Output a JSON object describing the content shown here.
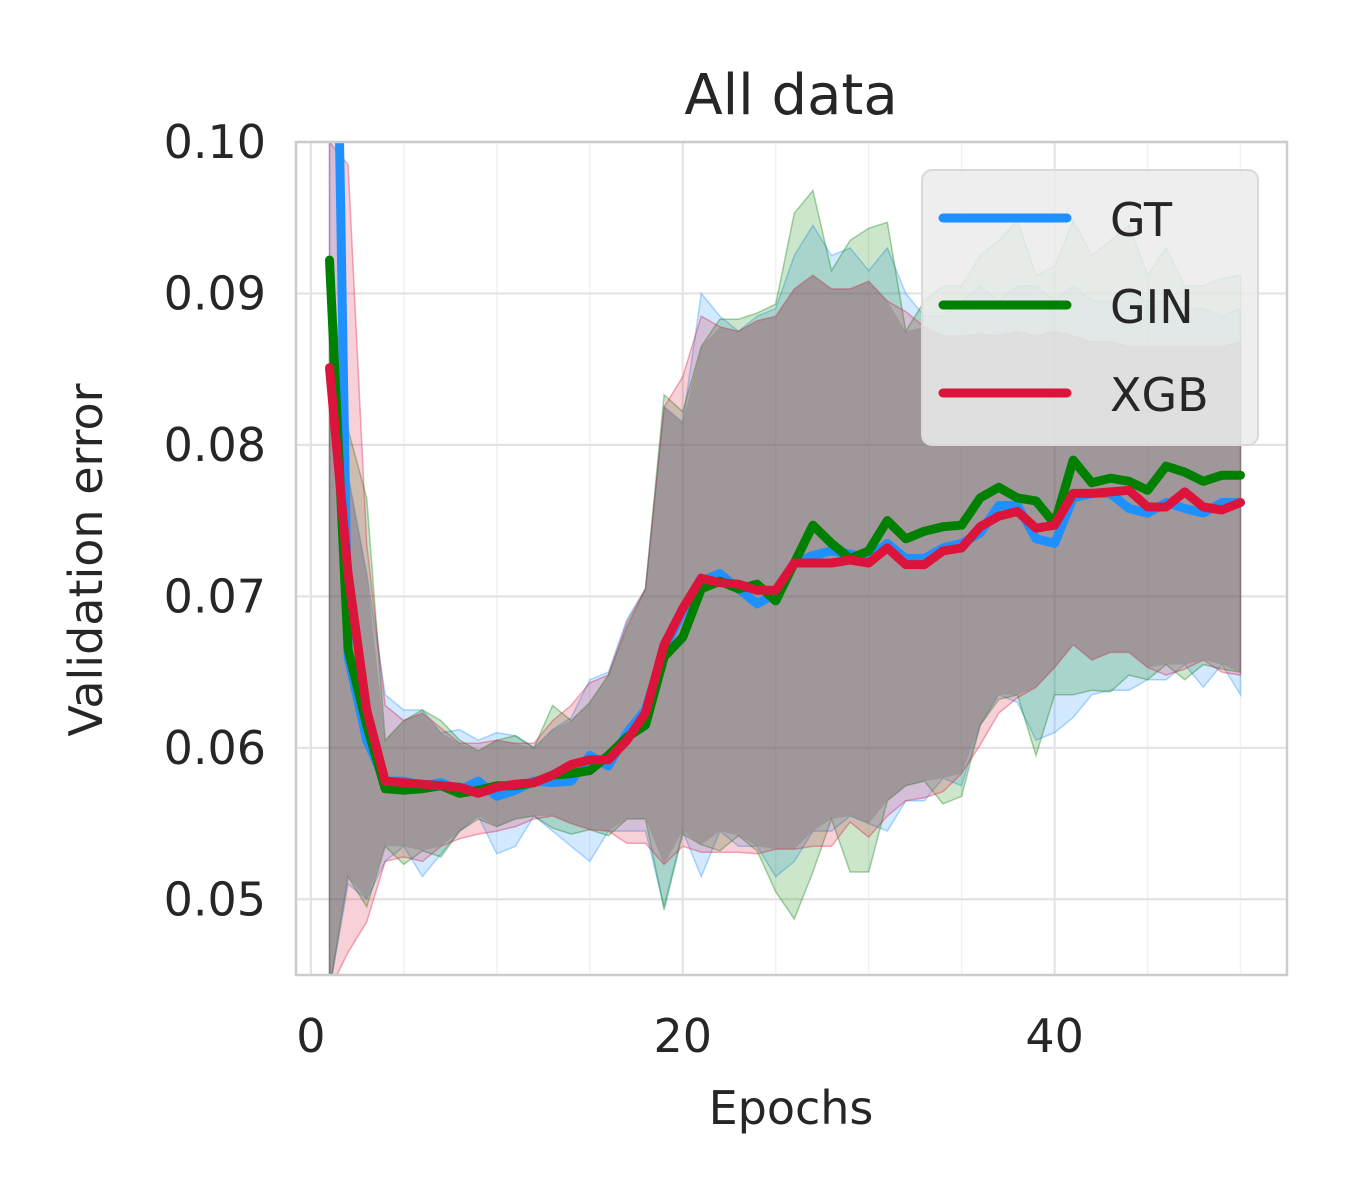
{
  "chart_data": {
    "type": "line",
    "title": "All data",
    "xlabel": "Epochs",
    "ylabel": "Validation error",
    "xlim": [
      -0.8,
      52.5
    ],
    "ylim": [
      0.045,
      0.1
    ],
    "xticks": [
      0,
      20,
      40
    ],
    "xtick_labels": [
      "0",
      "20",
      "40"
    ],
    "yticks": [
      0.05,
      0.06,
      0.07,
      0.08,
      0.09,
      0.1
    ],
    "ytick_labels": [
      "0.05",
      "0.06",
      "0.07",
      "0.08",
      "0.09",
      "0.10"
    ],
    "grid": true,
    "legend_position": "top-right",
    "x": [
      1,
      2,
      3,
      4,
      5,
      6,
      7,
      8,
      9,
      10,
      11,
      12,
      13,
      14,
      15,
      16,
      17,
      18,
      19,
      20,
      21,
      22,
      23,
      24,
      25,
      26,
      27,
      28,
      29,
      30,
      31,
      32,
      33,
      34,
      35,
      36,
      37,
      38,
      39,
      40,
      41,
      42,
      43,
      44,
      45,
      46,
      47,
      48,
      49,
      50
    ],
    "series": [
      {
        "name": "GT",
        "color": "#1e90ff",
        "values": [
          0.14,
          0.066,
          0.0605,
          0.0578,
          0.0578,
          0.0575,
          0.0577,
          0.0572,
          0.0578,
          0.0568,
          0.0572,
          0.0578,
          0.0577,
          0.0578,
          0.0595,
          0.0588,
          0.061,
          0.0625,
          0.0665,
          0.069,
          0.071,
          0.0715,
          0.0705,
          0.0695,
          0.0702,
          0.0722,
          0.0727,
          0.073,
          0.0728,
          0.0725,
          0.0735,
          0.0725,
          0.0725,
          0.0732,
          0.0735,
          0.0742,
          0.076,
          0.076,
          0.0738,
          0.0735,
          0.0765,
          0.0768,
          0.0768,
          0.0758,
          0.0755,
          0.0762,
          0.0758,
          0.0755,
          0.0762,
          0.0762
        ],
        "upper": [
          0.14,
          0.078,
          0.0715,
          0.0635,
          0.0625,
          0.0625,
          0.061,
          0.0612,
          0.0605,
          0.061,
          0.0608,
          0.06,
          0.0612,
          0.062,
          0.0645,
          0.065,
          0.0685,
          0.0705,
          0.0825,
          0.0815,
          0.09,
          0.0885,
          0.0875,
          0.0885,
          0.089,
          0.0925,
          0.0945,
          0.0925,
          0.093,
          0.0915,
          0.093,
          0.09,
          0.0885,
          0.0885,
          0.0895,
          0.0905,
          0.0895,
          0.0905,
          0.0905,
          0.0895,
          0.0905,
          0.0895,
          0.0895,
          0.09,
          0.0895,
          0.0895,
          0.089,
          0.089,
          0.0885,
          0.089
        ],
        "lower": [
          0.044,
          0.051,
          0.05,
          0.0525,
          0.0535,
          0.0515,
          0.053,
          0.0545,
          0.0555,
          0.053,
          0.0535,
          0.0555,
          0.0545,
          0.0535,
          0.0525,
          0.0545,
          0.0545,
          0.0545,
          0.0495,
          0.0545,
          0.0515,
          0.0545,
          0.0535,
          0.0535,
          0.0515,
          0.0525,
          0.0545,
          0.0545,
          0.0555,
          0.055,
          0.0545,
          0.0565,
          0.0565,
          0.058,
          0.0575,
          0.0615,
          0.0635,
          0.063,
          0.0605,
          0.061,
          0.062,
          0.0635,
          0.0638,
          0.0638,
          0.0645,
          0.0645,
          0.0655,
          0.064,
          0.0655,
          0.0635
        ]
      },
      {
        "name": "GIN",
        "color": "#008000",
        "values": [
          0.0922,
          0.0665,
          0.0615,
          0.0573,
          0.0572,
          0.0573,
          0.0575,
          0.057,
          0.0572,
          0.0575,
          0.0575,
          0.0577,
          0.0582,
          0.0583,
          0.0585,
          0.0595,
          0.0607,
          0.0615,
          0.066,
          0.0673,
          0.0705,
          0.071,
          0.0705,
          0.0708,
          0.0697,
          0.0722,
          0.0747,
          0.0735,
          0.0725,
          0.073,
          0.075,
          0.0738,
          0.0743,
          0.0746,
          0.0747,
          0.0765,
          0.0772,
          0.0765,
          0.0763,
          0.0748,
          0.079,
          0.0775,
          0.0778,
          0.0776,
          0.077,
          0.0786,
          0.0782,
          0.0776,
          0.078,
          0.078
        ],
        "upper": [
          0.0922,
          0.081,
          0.0765,
          0.0605,
          0.0618,
          0.0625,
          0.0618,
          0.0605,
          0.0598,
          0.0605,
          0.0608,
          0.06,
          0.0628,
          0.0618,
          0.063,
          0.0648,
          0.068,
          0.0705,
          0.0833,
          0.0822,
          0.0865,
          0.0883,
          0.0883,
          0.0887,
          0.0893,
          0.0953,
          0.0968,
          0.0915,
          0.0935,
          0.0943,
          0.0947,
          0.0875,
          0.0895,
          0.0905,
          0.0905,
          0.0925,
          0.0935,
          0.0948,
          0.0912,
          0.0918,
          0.0948,
          0.0925,
          0.0935,
          0.0945,
          0.0912,
          0.093,
          0.0905,
          0.0905,
          0.091,
          0.0912
        ],
        "lower": [
          0.044,
          0.0515,
          0.0495,
          0.0535,
          0.0523,
          0.0532,
          0.0528,
          0.0545,
          0.0553,
          0.0548,
          0.0553,
          0.0555,
          0.0547,
          0.0543,
          0.0546,
          0.0542,
          0.0553,
          0.0553,
          0.0493,
          0.0543,
          0.0536,
          0.0532,
          0.0542,
          0.0532,
          0.0505,
          0.0487,
          0.0518,
          0.0553,
          0.0518,
          0.0518,
          0.0565,
          0.0575,
          0.0578,
          0.0563,
          0.0568,
          0.0615,
          0.0632,
          0.0635,
          0.0595,
          0.0635,
          0.0635,
          0.0638,
          0.0637,
          0.0648,
          0.0645,
          0.0655,
          0.0645,
          0.0655,
          0.0652,
          0.065
        ]
      },
      {
        "name": "XGB",
        "color": "#dc143c",
        "values": [
          0.0851,
          0.0715,
          0.0625,
          0.0578,
          0.0577,
          0.0576,
          0.0575,
          0.0574,
          0.057,
          0.0574,
          0.0576,
          0.0577,
          0.0582,
          0.0589,
          0.0592,
          0.0592,
          0.0605,
          0.0623,
          0.0668,
          0.0692,
          0.0712,
          0.0709,
          0.0708,
          0.0704,
          0.0704,
          0.0722,
          0.0722,
          0.0722,
          0.0724,
          0.0722,
          0.0732,
          0.0721,
          0.0721,
          0.073,
          0.0732,
          0.0746,
          0.0753,
          0.0756,
          0.0745,
          0.0747,
          0.0768,
          0.0768,
          0.0769,
          0.077,
          0.0759,
          0.0759,
          0.0769,
          0.0759,
          0.0757,
          0.0762
        ],
        "upper": [
          0.1,
          0.0985,
          0.0735,
          0.0628,
          0.0618,
          0.0623,
          0.0613,
          0.0603,
          0.0603,
          0.0605,
          0.0603,
          0.0603,
          0.0618,
          0.0628,
          0.0643,
          0.0648,
          0.0683,
          0.0705,
          0.0825,
          0.0845,
          0.0885,
          0.0878,
          0.0875,
          0.0882,
          0.0885,
          0.0903,
          0.0912,
          0.0903,
          0.0903,
          0.0908,
          0.0895,
          0.0888,
          0.0878,
          0.0872,
          0.0872,
          0.0873,
          0.0872,
          0.0875,
          0.0872,
          0.0875,
          0.0872,
          0.0868,
          0.0868,
          0.0865,
          0.0865,
          0.0865,
          0.0865,
          0.0865,
          0.0865,
          0.0868
        ],
        "lower": [
          0.044,
          0.0465,
          0.0485,
          0.0525,
          0.0528,
          0.0525,
          0.0535,
          0.054,
          0.0543,
          0.0545,
          0.0548,
          0.0553,
          0.0555,
          0.055,
          0.0546,
          0.0545,
          0.0537,
          0.0537,
          0.0523,
          0.0535,
          0.0531,
          0.0531,
          0.0531,
          0.053,
          0.0533,
          0.0533,
          0.0535,
          0.0535,
          0.0551,
          0.0541,
          0.0555,
          0.0565,
          0.0567,
          0.0571,
          0.0583,
          0.0602,
          0.0623,
          0.0633,
          0.064,
          0.0653,
          0.0668,
          0.0658,
          0.0663,
          0.0663,
          0.0653,
          0.0648,
          0.0652,
          0.0658,
          0.065,
          0.0648
        ]
      }
    ]
  }
}
